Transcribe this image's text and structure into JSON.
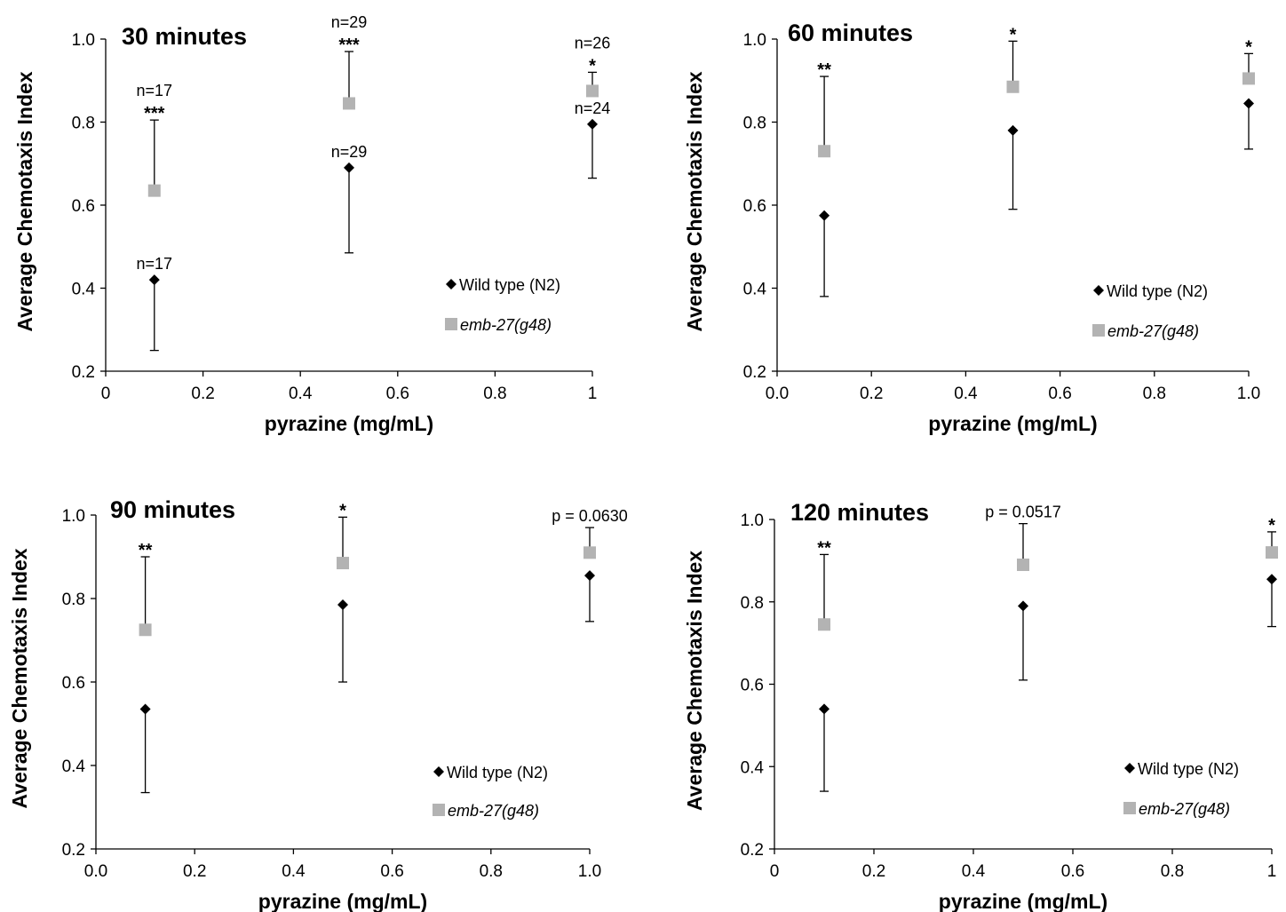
{
  "chart_data": [
    {
      "type": "scatter",
      "title": "30 minutes",
      "xlabel": "pyrazine (mg/mL)",
      "ylabel": "Average Chemotaxis Index",
      "xlim": [
        0,
        1
      ],
      "ylim": [
        0.2,
        1.0
      ],
      "xticks": [
        "0",
        "0.2",
        "0.4",
        "0.6",
        "0.8",
        "1"
      ],
      "yticks": [
        "0.2",
        "0.4",
        "0.6",
        "0.8",
        "1.0"
      ],
      "series": [
        {
          "name": "Wild type (N2)",
          "marker": "diamond",
          "color": "#000000",
          "x": [
            0.1,
            0.5,
            1.0
          ],
          "y": [
            0.42,
            0.69,
            0.795
          ],
          "err_low": [
            0.25,
            0.485,
            0.665
          ]
        },
        {
          "name": "emb-27(g48)",
          "marker": "square",
          "color": "#b3b3b3",
          "x": [
            0.1,
            0.5,
            1.0
          ],
          "y": [
            0.635,
            0.845,
            0.875
          ],
          "err_high": [
            0.805,
            0.97,
            0.92
          ]
        }
      ],
      "annotations": [
        {
          "x": 0.1,
          "y": 0.42,
          "text": "n=17",
          "kind": "n"
        },
        {
          "x": 0.1,
          "y": 0.805,
          "text": "***",
          "kind": "star"
        },
        {
          "x": 0.1,
          "y": 0.805,
          "text": "n=17",
          "kind": "n_top"
        },
        {
          "x": 0.5,
          "y": 0.69,
          "text": "n=29",
          "kind": "n"
        },
        {
          "x": 0.5,
          "y": 0.97,
          "text": "***",
          "kind": "star"
        },
        {
          "x": 0.5,
          "y": 0.97,
          "text": "n=29",
          "kind": "n_top"
        },
        {
          "x": 1.0,
          "y": 0.795,
          "text": "n=24",
          "kind": "n"
        },
        {
          "x": 1.0,
          "y": 0.92,
          "text": "*",
          "kind": "star"
        },
        {
          "x": 1.0,
          "y": 0.92,
          "text": "n=26",
          "kind": "n_top"
        }
      ],
      "legend": [
        "Wild type (N2)",
        "emb-27(g48)"
      ],
      "legend_position": "bottom-right"
    },
    {
      "type": "scatter",
      "title": "60 minutes",
      "xlabel": "pyrazine (mg/mL)",
      "ylabel": "Average Chemotaxis Index",
      "xlim": [
        0,
        1
      ],
      "ylim": [
        0.2,
        1.0
      ],
      "xticks": [
        "0.0",
        "0.2",
        "0.4",
        "0.6",
        "0.8",
        "1.0"
      ],
      "yticks": [
        "0.2",
        "0.4",
        "0.6",
        "0.8",
        "1.0"
      ],
      "series": [
        {
          "name": "Wild type (N2)",
          "marker": "diamond",
          "color": "#000000",
          "x": [
            0.1,
            0.5,
            1.0
          ],
          "y": [
            0.575,
            0.78,
            0.845
          ],
          "err_low": [
            0.38,
            0.59,
            0.735
          ]
        },
        {
          "name": "emb-27(g48)",
          "marker": "square",
          "color": "#b3b3b3",
          "x": [
            0.1,
            0.5,
            1.0
          ],
          "y": [
            0.73,
            0.885,
            0.905
          ],
          "err_high": [
            0.91,
            0.995,
            0.965
          ]
        }
      ],
      "annotations": [
        {
          "x": 0.1,
          "y": 0.91,
          "text": "**",
          "kind": "star"
        },
        {
          "x": 0.5,
          "y": 0.995,
          "text": "*",
          "kind": "star"
        },
        {
          "x": 1.0,
          "y": 0.965,
          "text": "*",
          "kind": "star"
        }
      ],
      "legend": [
        "Wild type (N2)",
        "emb-27(g48)"
      ],
      "legend_position": "bottom-right"
    },
    {
      "type": "scatter",
      "title": "90 minutes",
      "xlabel": "pyrazine (mg/mL)",
      "ylabel": "Average Chemotaxis Index",
      "xlim": [
        0,
        1
      ],
      "ylim": [
        0.2,
        1.0
      ],
      "xticks": [
        "0.0",
        "0.2",
        "0.4",
        "0.6",
        "0.8",
        "1.0"
      ],
      "yticks": [
        "0.2",
        "0.4",
        "0.6",
        "0.8",
        "1.0"
      ],
      "series": [
        {
          "name": "Wild type (N2)",
          "marker": "diamond",
          "color": "#000000",
          "x": [
            0.1,
            0.5,
            1.0
          ],
          "y": [
            0.535,
            0.785,
            0.855
          ],
          "err_low": [
            0.335,
            0.6,
            0.745
          ]
        },
        {
          "name": "emb-27(g48)",
          "marker": "square",
          "color": "#b3b3b3",
          "x": [
            0.1,
            0.5,
            1.0
          ],
          "y": [
            0.725,
            0.885,
            0.91
          ],
          "err_high": [
            0.9,
            0.995,
            0.97
          ]
        }
      ],
      "annotations": [
        {
          "x": 0.1,
          "y": 0.9,
          "text": "**",
          "kind": "star"
        },
        {
          "x": 0.5,
          "y": 0.995,
          "text": "*",
          "kind": "star"
        },
        {
          "x": 1.0,
          "y": 0.97,
          "text": "p = 0.0630",
          "kind": "p"
        }
      ],
      "legend": [
        "Wild type (N2)",
        "emb-27(g48)"
      ],
      "legend_position": "bottom-right"
    },
    {
      "type": "scatter",
      "title": "120 minutes",
      "xlabel": "pyrazine (mg/mL)",
      "ylabel": "Average Chemotaxis Index",
      "xlim": [
        0,
        1
      ],
      "ylim": [
        0.2,
        1.0
      ],
      "xticks": [
        "0",
        "0.2",
        "0.4",
        "0.6",
        "0.8",
        "1"
      ],
      "yticks": [
        "0.2",
        "0.4",
        "0.6",
        "0.8",
        "1.0"
      ],
      "series": [
        {
          "name": "Wild type (N2)",
          "marker": "diamond",
          "color": "#000000",
          "x": [
            0.1,
            0.5,
            1.0
          ],
          "y": [
            0.54,
            0.79,
            0.855
          ],
          "err_low": [
            0.34,
            0.61,
            0.74
          ]
        },
        {
          "name": "emb-27(g48)",
          "marker": "square",
          "color": "#b3b3b3",
          "x": [
            0.1,
            0.5,
            1.0
          ],
          "y": [
            0.745,
            0.89,
            0.92
          ],
          "err_high": [
            0.915,
            0.99,
            0.97
          ]
        }
      ],
      "annotations": [
        {
          "x": 0.1,
          "y": 0.915,
          "text": "**",
          "kind": "star"
        },
        {
          "x": 0.5,
          "y": 0.99,
          "text": "p = 0.0517",
          "kind": "p"
        },
        {
          "x": 1.0,
          "y": 0.97,
          "text": "*",
          "kind": "star"
        }
      ],
      "legend": [
        "Wild type (N2)",
        "emb-27(g48)"
      ],
      "legend_position": "bottom-right"
    }
  ]
}
